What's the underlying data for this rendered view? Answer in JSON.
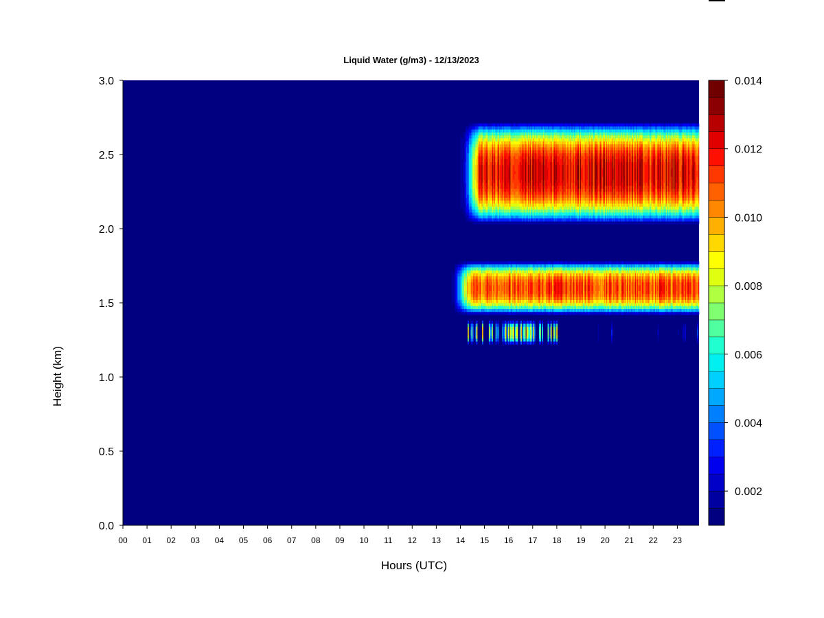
{
  "chart_data": {
    "type": "heatmap",
    "title": "Liquid Water (g/m3) - 12/13/2023",
    "xlabel": "Hours (UTC)",
    "ylabel": "Height (km)",
    "xlim": [
      0,
      23.9
    ],
    "ylim": [
      0.0,
      3.0
    ],
    "x_ticks": [
      "00",
      "01",
      "02",
      "03",
      "04",
      "05",
      "06",
      "07",
      "08",
      "09",
      "10",
      "11",
      "12",
      "13",
      "14",
      "15",
      "16",
      "17",
      "18",
      "19",
      "20",
      "21",
      "22",
      "23"
    ],
    "y_ticks": [
      "0.0",
      "0.5",
      "1.0",
      "1.5",
      "2.0",
      "2.5",
      "3.0"
    ],
    "colorbar": {
      "min": 0.001,
      "max": 0.014,
      "ticks": [
        "0.002",
        "0.004",
        "0.006",
        "0.008",
        "0.010",
        "0.012",
        "0.014"
      ],
      "tick_values": [
        0.002,
        0.004,
        0.006,
        0.008,
        0.01,
        0.012,
        0.014
      ],
      "colors": [
        "#000080",
        "#0000a0",
        "#0000c8",
        "#0000ee",
        "#0020ff",
        "#0050ff",
        "#0080ff",
        "#00a8ff",
        "#00d0ff",
        "#00f0f0",
        "#20ffd0",
        "#50ffa0",
        "#80ff70",
        "#b0ff40",
        "#e0ff10",
        "#ffff00",
        "#ffd800",
        "#ffb000",
        "#ff8800",
        "#ff6000",
        "#ff3800",
        "#ff1000",
        "#e00000",
        "#b80000",
        "#8b0000",
        "#700000"
      ]
    },
    "cloud_layers": [
      {
        "name": "upper",
        "x_start": 14.0,
        "x_end": 23.9,
        "base_km": 2.03,
        "top_km": 2.72,
        "peak_g_m3": 0.0135
      },
      {
        "name": "lower",
        "x_start": 13.6,
        "x_end": 23.9,
        "base_km": 1.42,
        "top_km": 1.78,
        "peak_g_m3": 0.0125
      },
      {
        "name": "fragments",
        "x_start": 14.3,
        "x_end": 23.9,
        "base_km": 1.22,
        "top_km": 1.38,
        "peak_g_m3": 0.01
      }
    ]
  }
}
